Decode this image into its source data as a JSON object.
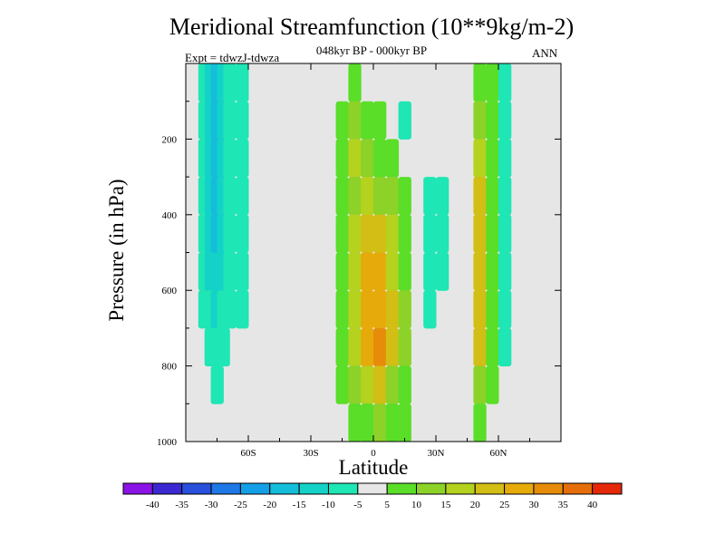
{
  "chart_data": {
    "type": "heatmap",
    "title": "Meridional Streamfunction (10**9kg/m-2)",
    "subtitle": "048kyr BP - 000kyr BP",
    "left_label": "Expt = tdwzJ-tdwza",
    "right_label": "ANN",
    "xlabel": "Latitude",
    "ylabel": "Pressure (in hPa)",
    "xlim": [
      -90,
      90
    ],
    "ylim": [
      1000,
      0
    ],
    "x_ticks": [
      {
        "value": -60,
        "label": "60S"
      },
      {
        "value": -30,
        "label": "30S"
      },
      {
        "value": 0,
        "label": "0"
      },
      {
        "value": 30,
        "label": "30N"
      },
      {
        "value": 60,
        "label": "60N"
      }
    ],
    "y_ticks": [
      {
        "value": 200,
        "label": "200"
      },
      {
        "value": 400,
        "label": "400"
      },
      {
        "value": 600,
        "label": "600"
      },
      {
        "value": 800,
        "label": "800"
      },
      {
        "value": 1000,
        "label": "1000"
      }
    ],
    "background_color": "#e6e6e6",
    "colorbar": {
      "levels": [
        "-40",
        "-35",
        "-30",
        "-25",
        "-20",
        "-15",
        "-10",
        "-5",
        "5",
        "10",
        "15",
        "20",
        "25",
        "30",
        "35",
        "40"
      ],
      "colors": [
        "#8a14e6",
        "#3c28d2",
        "#2850dc",
        "#1e78e6",
        "#14a0e6",
        "#14beda",
        "#14d2c8",
        "#1ee6b4",
        "#e6e6e6",
        "#5ade28",
        "#8cd228",
        "#b4d21e",
        "#d2be14",
        "#e6aa0a",
        "#e68c0a",
        "#e66e0a",
        "#e6280a"
      ]
    },
    "cells": [
      {
        "x": -81,
        "y": 50,
        "value": -10
      },
      {
        "x": -81,
        "y": 150,
        "value": -10
      },
      {
        "x": -81,
        "y": 250,
        "value": -10
      },
      {
        "x": -81,
        "y": 350,
        "value": -10
      },
      {
        "x": -81,
        "y": 450,
        "value": -10
      },
      {
        "x": -81,
        "y": 550,
        "value": -10
      },
      {
        "x": -81,
        "y": 650,
        "value": -10
      },
      {
        "x": -78,
        "y": 50,
        "value": -15
      },
      {
        "x": -78,
        "y": 150,
        "value": -15
      },
      {
        "x": -78,
        "y": 250,
        "value": -15
      },
      {
        "x": -78,
        "y": 350,
        "value": -15
      },
      {
        "x": -78,
        "y": 450,
        "value": -15
      },
      {
        "x": -78,
        "y": 550,
        "value": -15
      },
      {
        "x": -78,
        "y": 650,
        "value": -10
      },
      {
        "x": -78,
        "y": 750,
        "value": -10
      },
      {
        "x": -75,
        "y": 50,
        "value": -20
      },
      {
        "x": -75,
        "y": 150,
        "value": -20
      },
      {
        "x": -75,
        "y": 250,
        "value": -20
      },
      {
        "x": -75,
        "y": 350,
        "value": -20
      },
      {
        "x": -75,
        "y": 450,
        "value": -20
      },
      {
        "x": -75,
        "y": 550,
        "value": -15
      },
      {
        "x": -75,
        "y": 650,
        "value": -15
      },
      {
        "x": -75,
        "y": 750,
        "value": -10
      },
      {
        "x": -75,
        "y": 850,
        "value": -10
      },
      {
        "x": -72,
        "y": 50,
        "value": -15
      },
      {
        "x": -72,
        "y": 150,
        "value": -15
      },
      {
        "x": -72,
        "y": 250,
        "value": -15
      },
      {
        "x": -72,
        "y": 350,
        "value": -15
      },
      {
        "x": -72,
        "y": 450,
        "value": -15
      },
      {
        "x": -72,
        "y": 550,
        "value": -15
      },
      {
        "x": -72,
        "y": 650,
        "value": -10
      },
      {
        "x": -72,
        "y": 750,
        "value": -10
      },
      {
        "x": -69,
        "y": 50,
        "value": -10
      },
      {
        "x": -69,
        "y": 150,
        "value": -10
      },
      {
        "x": -69,
        "y": 250,
        "value": -10
      },
      {
        "x": -69,
        "y": 350,
        "value": -10
      },
      {
        "x": -69,
        "y": 450,
        "value": -10
      },
      {
        "x": -69,
        "y": 550,
        "value": -10
      },
      {
        "x": -69,
        "y": 650,
        "value": -10
      },
      {
        "x": -63,
        "y": 50,
        "value": -10
      },
      {
        "x": -63,
        "y": 150,
        "value": -10
      },
      {
        "x": -63,
        "y": 250,
        "value": -10
      },
      {
        "x": -63,
        "y": 350,
        "value": -10
      },
      {
        "x": -63,
        "y": 450,
        "value": -10
      },
      {
        "x": -63,
        "y": 550,
        "value": -10
      },
      {
        "x": -63,
        "y": 650,
        "value": -10
      },
      {
        "x": -15,
        "y": 150,
        "value": 5
      },
      {
        "x": -15,
        "y": 250,
        "value": 5
      },
      {
        "x": -15,
        "y": 350,
        "value": 5
      },
      {
        "x": -15,
        "y": 450,
        "value": 5
      },
      {
        "x": -15,
        "y": 550,
        "value": 5
      },
      {
        "x": -15,
        "y": 650,
        "value": 5
      },
      {
        "x": -15,
        "y": 750,
        "value": 5
      },
      {
        "x": -15,
        "y": 850,
        "value": 5
      },
      {
        "x": -9,
        "y": 50,
        "value": 5
      },
      {
        "x": -9,
        "y": 150,
        "value": 10
      },
      {
        "x": -9,
        "y": 250,
        "value": 15
      },
      {
        "x": -9,
        "y": 350,
        "value": 10
      },
      {
        "x": -9,
        "y": 450,
        "value": 15
      },
      {
        "x": -9,
        "y": 550,
        "value": 15
      },
      {
        "x": -9,
        "y": 650,
        "value": 15
      },
      {
        "x": -9,
        "y": 750,
        "value": 15
      },
      {
        "x": -9,
        "y": 850,
        "value": 10
      },
      {
        "x": -9,
        "y": 950,
        "value": 5
      },
      {
        "x": -3,
        "y": 150,
        "value": 5
      },
      {
        "x": -3,
        "y": 250,
        "value": 10
      },
      {
        "x": -3,
        "y": 350,
        "value": 15
      },
      {
        "x": -3,
        "y": 450,
        "value": 20
      },
      {
        "x": -3,
        "y": 550,
        "value": 25
      },
      {
        "x": -3,
        "y": 650,
        "value": 25
      },
      {
        "x": -3,
        "y": 750,
        "value": 25
      },
      {
        "x": -3,
        "y": 850,
        "value": 15
      },
      {
        "x": -3,
        "y": 950,
        "value": 5
      },
      {
        "x": 3,
        "y": 150,
        "value": 5
      },
      {
        "x": 3,
        "y": 250,
        "value": 5
      },
      {
        "x": 3,
        "y": 350,
        "value": 10
      },
      {
        "x": 3,
        "y": 450,
        "value": 20
      },
      {
        "x": 3,
        "y": 550,
        "value": 25
      },
      {
        "x": 3,
        "y": 650,
        "value": 25
      },
      {
        "x": 3,
        "y": 750,
        "value": 30
      },
      {
        "x": 3,
        "y": 850,
        "value": 20
      },
      {
        "x": 3,
        "y": 950,
        "value": 10
      },
      {
        "x": 9,
        "y": 250,
        "value": 5
      },
      {
        "x": 9,
        "y": 350,
        "value": 10
      },
      {
        "x": 9,
        "y": 450,
        "value": 15
      },
      {
        "x": 9,
        "y": 550,
        "value": 15
      },
      {
        "x": 9,
        "y": 650,
        "value": 20
      },
      {
        "x": 9,
        "y": 750,
        "value": 20
      },
      {
        "x": 9,
        "y": 850,
        "value": 10
      },
      {
        "x": 9,
        "y": 950,
        "value": 5
      },
      {
        "x": 15,
        "y": 350,
        "value": 5
      },
      {
        "x": 15,
        "y": 450,
        "value": 5
      },
      {
        "x": 15,
        "y": 550,
        "value": 5
      },
      {
        "x": 15,
        "y": 650,
        "value": 10
      },
      {
        "x": 15,
        "y": 750,
        "value": 10
      },
      {
        "x": 15,
        "y": 850,
        "value": 5
      },
      {
        "x": 15,
        "y": 950,
        "value": 5
      },
      {
        "x": 15,
        "y": 150,
        "value": -10
      },
      {
        "x": 27,
        "y": 350,
        "value": -10
      },
      {
        "x": 27,
        "y": 450,
        "value": -10
      },
      {
        "x": 27,
        "y": 550,
        "value": -10
      },
      {
        "x": 27,
        "y": 650,
        "value": -10
      },
      {
        "x": 33,
        "y": 350,
        "value": -10
      },
      {
        "x": 33,
        "y": 450,
        "value": -10
      },
      {
        "x": 33,
        "y": 550,
        "value": -10
      },
      {
        "x": 51,
        "y": 50,
        "value": 5
      },
      {
        "x": 51,
        "y": 150,
        "value": 10
      },
      {
        "x": 51,
        "y": 250,
        "value": 15
      },
      {
        "x": 51,
        "y": 350,
        "value": 20
      },
      {
        "x": 51,
        "y": 450,
        "value": 20
      },
      {
        "x": 51,
        "y": 550,
        "value": 20
      },
      {
        "x": 51,
        "y": 650,
        "value": 20
      },
      {
        "x": 51,
        "y": 750,
        "value": 20
      },
      {
        "x": 51,
        "y": 850,
        "value": 10
      },
      {
        "x": 51,
        "y": 950,
        "value": 5
      },
      {
        "x": 57,
        "y": 50,
        "value": 5
      },
      {
        "x": 57,
        "y": 150,
        "value": 5
      },
      {
        "x": 57,
        "y": 250,
        "value": 5
      },
      {
        "x": 57,
        "y": 350,
        "value": 5
      },
      {
        "x": 57,
        "y": 450,
        "value": 5
      },
      {
        "x": 57,
        "y": 550,
        "value": 5
      },
      {
        "x": 57,
        "y": 650,
        "value": 5
      },
      {
        "x": 57,
        "y": 750,
        "value": 5
      },
      {
        "x": 57,
        "y": 850,
        "value": 5
      },
      {
        "x": 63,
        "y": 50,
        "value": -10
      },
      {
        "x": 63,
        "y": 150,
        "value": -10
      },
      {
        "x": 63,
        "y": 250,
        "value": -10
      },
      {
        "x": 63,
        "y": 350,
        "value": -10
      },
      {
        "x": 63,
        "y": 450,
        "value": -10
      },
      {
        "x": 63,
        "y": 550,
        "value": -10
      },
      {
        "x": 63,
        "y": 650,
        "value": -10
      },
      {
        "x": 63,
        "y": 750,
        "value": -10
      }
    ]
  }
}
